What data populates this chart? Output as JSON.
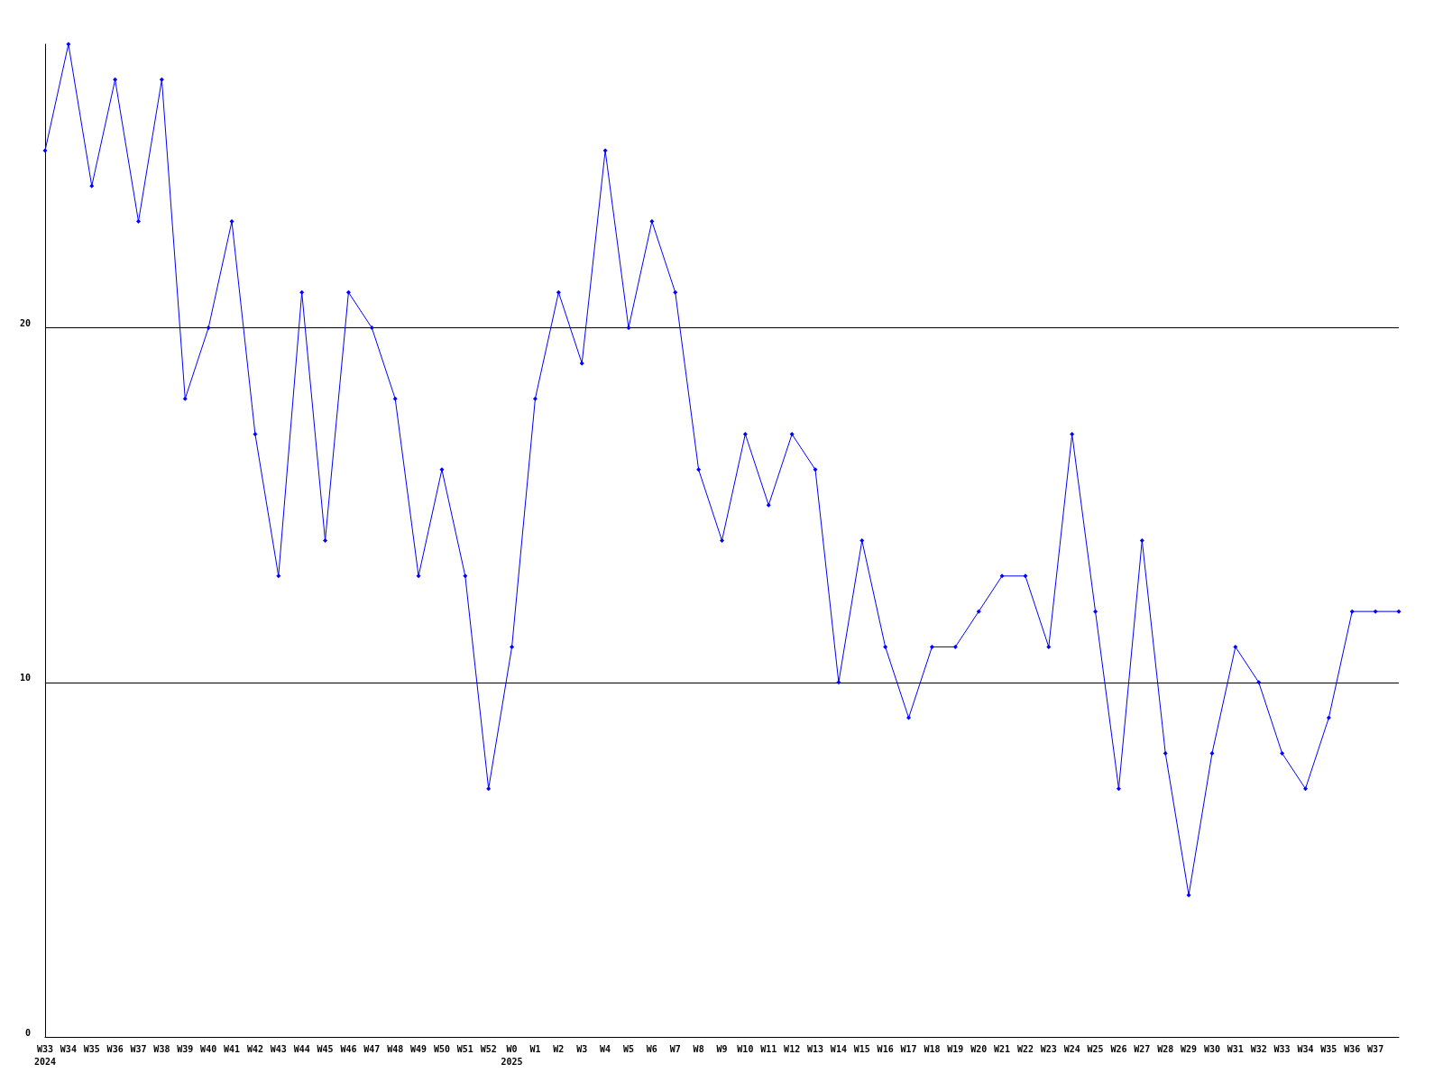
{
  "chart_data": {
    "type": "line",
    "categories": [
      "W33\n2024",
      "W34",
      "W35",
      "W36",
      "W37",
      "W38",
      "W39",
      "W40",
      "W41",
      "W42",
      "W43",
      "W44",
      "W45",
      "W46",
      "W47",
      "W48",
      "W49",
      "W50",
      "W51",
      "W52",
      "W0\n2025",
      "W1",
      "W2",
      "W3",
      "W4",
      "W5",
      "W6",
      "W7",
      "W8",
      "W9",
      "W10",
      "W11",
      "W12",
      "W13",
      "W14",
      "W15",
      "W16",
      "W17",
      "W18",
      "W19",
      "W20",
      "W21",
      "W22",
      "W23",
      "W24",
      "W25",
      "W26",
      "W27",
      "W28",
      "W29",
      "W30",
      "W31",
      "W32",
      "W33",
      "W34",
      "W35",
      "W36",
      "W37",
      null
    ],
    "series": [
      {
        "color": "#0000ff",
        "values": [
          25,
          28,
          24,
          27,
          23,
          27,
          18,
          20,
          23,
          17,
          13,
          21,
          14,
          21,
          20,
          18,
          13,
          16,
          13,
          7,
          11,
          18,
          21,
          19,
          25,
          20,
          23,
          21,
          16,
          14,
          17,
          15,
          17,
          16,
          10,
          14,
          11,
          9,
          11,
          11,
          12,
          13,
          13,
          11,
          17,
          12,
          7,
          14,
          8,
          4,
          8,
          11,
          10,
          8,
          7,
          9,
          12,
          12,
          12
        ]
      }
    ],
    "ylim": [
      0,
      28
    ],
    "yticks": [
      0,
      10,
      20
    ],
    "grid": "y",
    "marker": "diamond",
    "line_style": "solid"
  }
}
